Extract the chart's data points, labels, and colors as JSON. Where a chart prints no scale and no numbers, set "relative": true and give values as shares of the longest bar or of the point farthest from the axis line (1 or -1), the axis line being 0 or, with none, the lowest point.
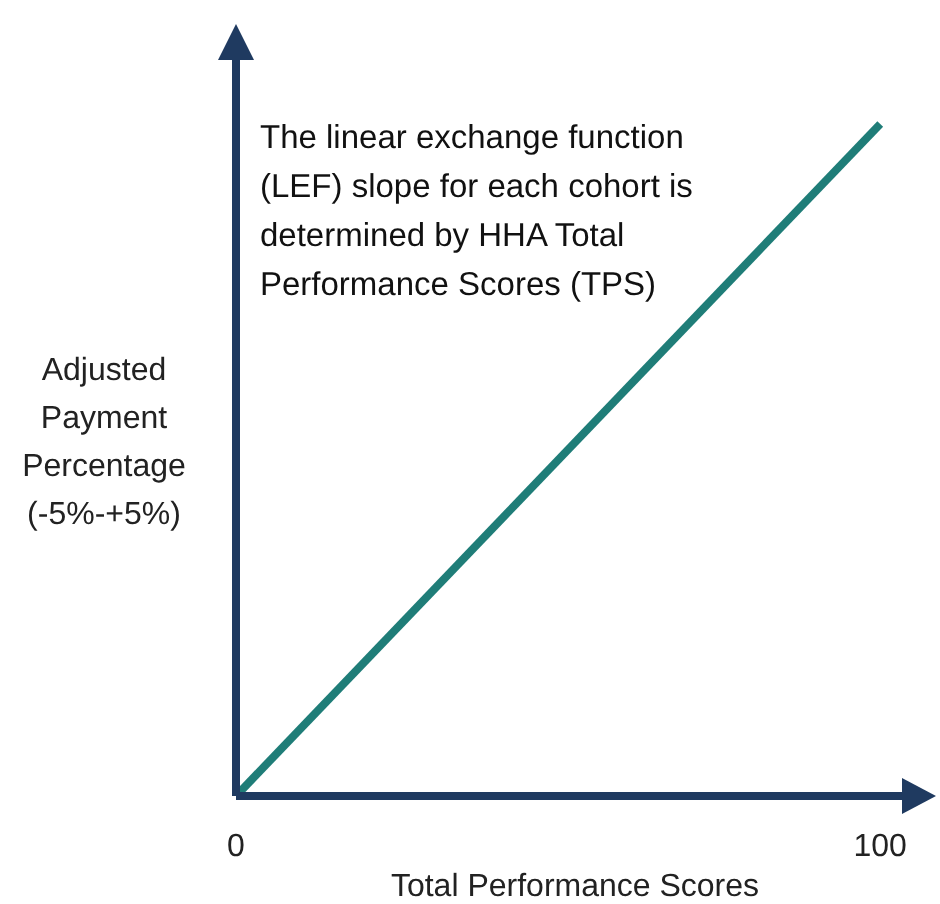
{
  "chart_data": {
    "type": "line",
    "relative": true,
    "xlabel": "Total Performance Scores",
    "ylabel": "Adjusted Payment Percentage (-5%-+5%)",
    "xlim": [
      0,
      104
    ],
    "xticks": [
      0,
      100
    ],
    "x": [
      0,
      100
    ],
    "series": [
      {
        "color": "#1f7d78",
        "values": [
          0,
          1
        ]
      }
    ],
    "annotations": [
      "The linear exchange function (LEF) slope for each cohort is determined by HHA Total Performance Scores (TPS)"
    ],
    "grid": false,
    "marker": "none",
    "line_style": "solid"
  }
}
